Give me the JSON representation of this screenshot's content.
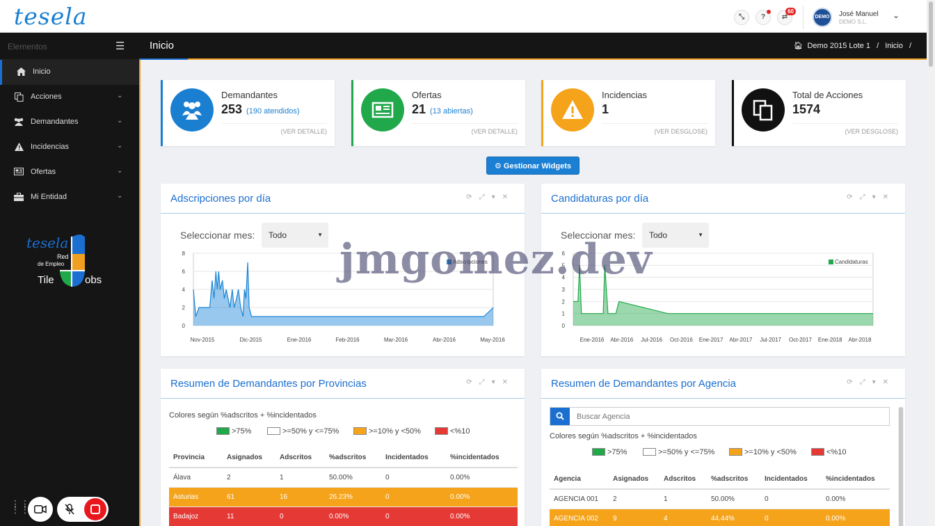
{
  "app": {
    "logo": "tesela"
  },
  "topbar": {
    "notif_badge": "60",
    "help_label": "?",
    "avatar_text": "DEMO",
    "user_name": "José Manuel",
    "user_org": "DEMO S.L."
  },
  "sidebar": {
    "title": "Elementos",
    "items": [
      {
        "label": "Inicio",
        "icon": "home-icon"
      },
      {
        "label": "Acciones",
        "icon": "copy-icon"
      },
      {
        "label": "Demandantes",
        "icon": "users-icon"
      },
      {
        "label": "Incidencias",
        "icon": "warning-icon"
      },
      {
        "label": "Ofertas",
        "icon": "newspaper-icon"
      },
      {
        "label": "Mi Entidad",
        "icon": "briefcase-icon"
      }
    ],
    "logo_brand": "tesela",
    "logo_line1": "Red",
    "logo_line2": "de Empleo",
    "logo_tile": "Tile",
    "logo_jobs": "obs"
  },
  "header": {
    "title": "Inicio",
    "breadcrumb": [
      "Demo 2015 Lote 1",
      "/",
      "Inicio",
      "/"
    ]
  },
  "stats": [
    {
      "label": "Demandantes",
      "value": "253",
      "sub": "(190 atendidos)",
      "more": "(VER DETALLE)",
      "color": "#1a7fd0"
    },
    {
      "label": "Ofertas",
      "value": "21",
      "sub": "(13 abiertas)",
      "more": "(VER DETALLE)",
      "color": "#21a84a"
    },
    {
      "label": "Incidencias",
      "value": "1",
      "sub": "",
      "more": "(VER DESGLOSE)",
      "color": "#f5a31a"
    },
    {
      "label": "Total de Acciones",
      "value": "1574",
      "sub": "",
      "more": "(VER DESGLOSE)",
      "color": "#111111"
    }
  ],
  "widgets_button": "Gestionar Widgets",
  "select_label": "Seleccionar mes:",
  "select_value": "Todo",
  "panels": {
    "adscripciones": "Adscripciones por día",
    "candidaturas": "Candidaturas por día",
    "provincias": "Resumen de Demandantes por Provincias",
    "agencia": "Resumen de Demandantes por Agencia"
  },
  "chart_data": [
    {
      "type": "area",
      "title": "",
      "x_ticks": [
        "Nov-2015",
        "Dic-2015",
        "Ene-2016",
        "Feb-2016",
        "Mar-2016",
        "Abr-2016",
        "May-2016"
      ],
      "y_ticks": [
        "0",
        "2",
        "4",
        "6",
        "8"
      ],
      "ylim": [
        0,
        8
      ],
      "series": [
        {
          "name": "Adscripciones",
          "color": "#1a85d6",
          "points": [
            [
              0,
              4
            ],
            [
              0.5,
              1
            ],
            [
              1.2,
              2
            ],
            [
              3.5,
              2
            ],
            [
              4,
              5
            ],
            [
              4.4,
              3
            ],
            [
              4.8,
              6
            ],
            [
              5.1,
              4
            ],
            [
              5.4,
              6
            ],
            [
              5.7,
              4
            ],
            [
              6.2,
              5
            ],
            [
              6.6,
              3
            ],
            [
              7,
              4
            ],
            [
              7.4,
              3
            ],
            [
              7.8,
              2
            ],
            [
              8.3,
              4
            ],
            [
              8.7,
              2
            ],
            [
              9.2,
              3
            ],
            [
              9.6,
              4
            ],
            [
              10.1,
              2
            ],
            [
              10.6,
              1
            ],
            [
              10.9,
              4
            ],
            [
              11.2,
              3
            ],
            [
              11.6,
              7
            ],
            [
              11.9,
              2
            ],
            [
              12.4,
              1
            ],
            [
              15,
              1
            ],
            [
              30,
              1
            ],
            [
              62,
              1
            ],
            [
              64,
              2
            ]
          ]
        }
      ]
    },
    {
      "type": "area",
      "title": "",
      "x_ticks": [
        "Ene-2016",
        "Abr-2016",
        "Jul-2016",
        "Oct-2016",
        "Ene-2017",
        "Abr-2017",
        "Jul-2017",
        "Oct-2017",
        "Ene-2018",
        "Abr-2018"
      ],
      "y_ticks": [
        "0",
        "1",
        "2",
        "3",
        "4",
        "5",
        "6"
      ],
      "ylim": [
        0,
        6
      ],
      "series": [
        {
          "name": "Candidaturas",
          "color": "#21a84a",
          "points": [
            [
              0,
              2
            ],
            [
              1.5,
              2
            ],
            [
              2,
              5
            ],
            [
              2.6,
              1
            ],
            [
              9.5,
              1
            ],
            [
              10,
              5
            ],
            [
              11,
              1
            ],
            [
              13.5,
              1
            ],
            [
              14.5,
              2
            ],
            [
              30,
              1
            ],
            [
              95,
              1
            ]
          ]
        }
      ]
    }
  ],
  "provincias": {
    "legend_caption": "Colores según %adscritos + %incidentados",
    "legend": [
      {
        "label": ">75%",
        "color": "#21a84a"
      },
      {
        "label": ">=50% y <=75%",
        "color": "#ffffff"
      },
      {
        "label": ">=10% y <50%",
        "color": "#f5a31a"
      },
      {
        "label": "<%10",
        "color": "#e53935"
      }
    ],
    "columns": [
      "Provincia",
      "Asignados",
      "Adscritos",
      "%adscritos",
      "Incidentados",
      "%incidentados"
    ],
    "rows": [
      {
        "cells": [
          "Álava",
          "2",
          "1",
          "50.00%",
          "0",
          "0.00%"
        ],
        "status": "white"
      },
      {
        "cells": [
          "Asturias",
          "61",
          "16",
          "26.23%",
          "0",
          "0.00%"
        ],
        "status": "orange"
      },
      {
        "cells": [
          "Badajoz",
          "11",
          "0",
          "0.00%",
          "0",
          "0.00%"
        ],
        "status": "red"
      }
    ]
  },
  "agencia": {
    "search_placeholder": "Buscar Agencia",
    "legend_caption": "Colores según %adscritos + %incidentados",
    "legend": [
      {
        "label": ">75%",
        "color": "#21a84a"
      },
      {
        "label": ">=50% y <=75%",
        "color": "#ffffff"
      },
      {
        "label": ">=10% y <50%",
        "color": "#f5a31a"
      },
      {
        "label": "<%10",
        "color": "#e53935"
      }
    ],
    "columns": [
      "Agencia",
      "Asignados",
      "Adscritos",
      "%adscritos",
      "Incidentados",
      "%incidentados"
    ],
    "rows": [
      {
        "cells": [
          "AGENCIA 001",
          "2",
          "1",
          "50.00%",
          "0",
          "0.00%"
        ],
        "status": "white"
      },
      {
        "cells": [
          "AGENCIA 002",
          "9",
          "4",
          "44.44%",
          "0",
          "0.00%"
        ],
        "status": "orange"
      }
    ]
  },
  "watermark": "jmgomez.dev"
}
